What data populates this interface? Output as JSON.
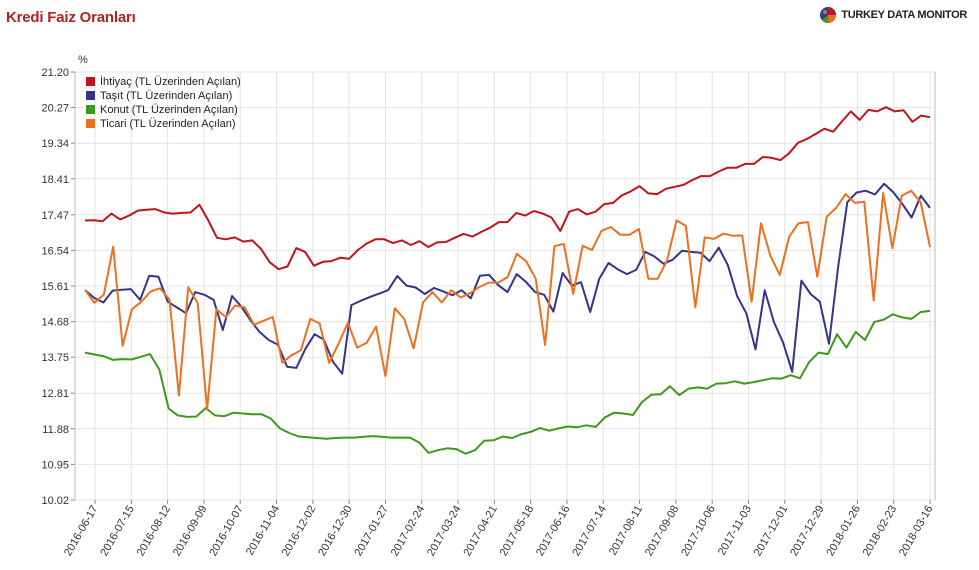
{
  "page": {
    "title": "Kredi Faiz Oranları",
    "brand": "TURKEY DATA MONITOR"
  },
  "colors": {
    "ihtiyac": "#c0141c",
    "tasit": "#34348a",
    "konut": "#3c9a1a",
    "ticari": "#ec7020",
    "grid": "#e4e4e4",
    "frame": "#bbbbbb"
  },
  "chart_data": {
    "type": "line",
    "ylabel": "%",
    "ylim": [
      10.02,
      21.2
    ],
    "y_ticks": [
      "21.20",
      "20.27",
      "19.34",
      "18.41",
      "17.47",
      "16.54",
      "15.61",
      "14.68",
      "13.75",
      "12.81",
      "11.88",
      "10.95",
      "10.02"
    ],
    "x_tick_labels": [
      "2016-06-17",
      "2016-07-15",
      "2016-08-12",
      "2016-09-09",
      "2016-10-07",
      "2016-11-04",
      "2016-12-02",
      "2016-12-30",
      "2017-01-27",
      "2017-02-24",
      "2017-03-24",
      "2017-04-21",
      "2017-05-18",
      "2017-06-16",
      "2017-07-14",
      "2017-08-11",
      "2017-09-08",
      "2017-10-06",
      "2017-11-03",
      "2017-12-01",
      "2017-12-29",
      "2018-01-26",
      "2018-02-23",
      "2018-03-16"
    ],
    "legend_position": "top-left",
    "grid": true,
    "series": [
      {
        "name": "İhtiyaç (TL Üzerinden Açılan)",
        "values": [
          17.32,
          17.33,
          17.3,
          17.5,
          17.35,
          17.45,
          17.58,
          17.6,
          17.62,
          17.53,
          17.5,
          17.52,
          17.53,
          17.73,
          17.33,
          16.87,
          16.83,
          16.88,
          16.77,
          16.8,
          16.58,
          16.23,
          16.05,
          16.12,
          16.6,
          16.5,
          16.14,
          16.24,
          16.26,
          16.35,
          16.32,
          16.55,
          16.72,
          16.83,
          16.83,
          16.73,
          16.8,
          16.68,
          16.78,
          16.63,
          16.75,
          16.76,
          16.87,
          16.97,
          16.9,
          17.02,
          17.13,
          17.28,
          17.28,
          17.52,
          17.45,
          17.57,
          17.5,
          17.4,
          17.05,
          17.55,
          17.62,
          17.48,
          17.55,
          17.75,
          17.78,
          17.98,
          18.08,
          18.22,
          18.03,
          18.01,
          18.15,
          18.2,
          18.25,
          18.38,
          18.48,
          18.48,
          18.6,
          18.7,
          18.7,
          18.8,
          18.8,
          18.98,
          18.96,
          18.9,
          19.08,
          19.35,
          19.45,
          19.58,
          19.72,
          19.64,
          19.91,
          20.17,
          19.95,
          20.21,
          20.17,
          20.28,
          20.17,
          20.2,
          19.9,
          20.06,
          20.02
        ]
      },
      {
        "name": "Taşıt (TL Üzerinden Açılan)",
        "values": [
          15.5,
          15.3,
          15.18,
          15.49,
          15.51,
          15.53,
          15.25,
          15.88,
          15.85,
          15.2,
          15.05,
          14.9,
          15.45,
          15.38,
          15.25,
          14.46,
          15.35,
          15.08,
          14.72,
          14.41,
          14.2,
          14.08,
          13.5,
          13.47,
          13.97,
          14.35,
          14.21,
          13.63,
          13.32,
          15.11,
          15.22,
          15.32,
          15.41,
          15.5,
          15.87,
          15.62,
          15.57,
          15.4,
          15.56,
          15.47,
          15.37,
          15.5,
          15.29,
          15.88,
          15.9,
          15.63,
          15.45,
          15.92,
          15.72,
          15.45,
          15.38,
          14.94,
          15.95,
          15.62,
          15.71,
          14.93,
          15.8,
          16.21,
          16.05,
          15.92,
          16.03,
          16.5,
          16.38,
          16.19,
          16.3,
          16.53,
          16.5,
          16.48,
          16.26,
          16.61,
          16.15,
          15.35,
          14.9,
          13.95,
          15.5,
          14.67,
          14.14,
          13.37,
          15.75,
          15.4,
          15.2,
          14.1,
          16.12,
          17.8,
          18.05,
          18.1,
          18.0,
          18.28,
          18.06,
          17.75,
          17.4,
          17.97,
          17.65
        ]
      },
      {
        "name": "Konut (TL Üzerinden Açılan)",
        "values": [
          13.87,
          13.82,
          13.78,
          13.68,
          13.7,
          13.69,
          13.76,
          13.83,
          13.43,
          12.41,
          12.23,
          12.19,
          12.2,
          12.42,
          12.23,
          12.21,
          12.3,
          12.28,
          12.26,
          12.26,
          12.15,
          11.89,
          11.77,
          11.68,
          11.66,
          11.64,
          11.62,
          11.64,
          11.65,
          11.65,
          11.67,
          11.69,
          11.67,
          11.65,
          11.65,
          11.65,
          11.52,
          11.25,
          11.32,
          11.37,
          11.35,
          11.23,
          11.32,
          11.57,
          11.58,
          11.68,
          11.64,
          11.74,
          11.8,
          11.9,
          11.83,
          11.89,
          11.94,
          11.92,
          11.97,
          11.93,
          12.18,
          12.3,
          12.28,
          12.24,
          12.58,
          12.77,
          12.78,
          12.99,
          12.76,
          12.93,
          12.96,
          12.93,
          13.06,
          13.07,
          13.12,
          13.06,
          13.1,
          13.15,
          13.2,
          13.19,
          13.28,
          13.2,
          13.63,
          13.87,
          13.83,
          14.35,
          14.0,
          14.41,
          14.2,
          14.67,
          14.73,
          14.87,
          14.79,
          14.75,
          14.93,
          14.96
        ]
      },
      {
        "name": "Ticari (TL Üzerinden Açılan)",
        "values": [
          15.51,
          15.17,
          15.38,
          16.64,
          14.05,
          15.0,
          15.2,
          15.47,
          15.55,
          15.25,
          12.75,
          15.58,
          15.16,
          12.39,
          15.0,
          14.8,
          15.1,
          15.05,
          14.6,
          14.7,
          14.8,
          13.61,
          13.8,
          13.93,
          14.75,
          14.63,
          13.6,
          14.1,
          14.65,
          14.0,
          14.13,
          14.55,
          13.26,
          15.03,
          14.75,
          13.98,
          15.18,
          15.45,
          15.18,
          15.5,
          15.31,
          15.42,
          15.58,
          15.7,
          15.7,
          15.84,
          16.45,
          16.25,
          15.8,
          14.07,
          16.65,
          16.71,
          15.4,
          16.66,
          16.55,
          17.05,
          17.15,
          16.95,
          16.95,
          17.1,
          15.8,
          15.8,
          16.28,
          17.32,
          17.18,
          15.05,
          16.88,
          16.84,
          16.98,
          16.92,
          16.93,
          15.2,
          17.25,
          16.4,
          15.9,
          16.9,
          17.25,
          17.28,
          15.85,
          17.42,
          17.65,
          18.01,
          17.78,
          17.81,
          15.23,
          18.04,
          16.6,
          17.97,
          18.1,
          17.8,
          16.63
        ]
      }
    ]
  }
}
